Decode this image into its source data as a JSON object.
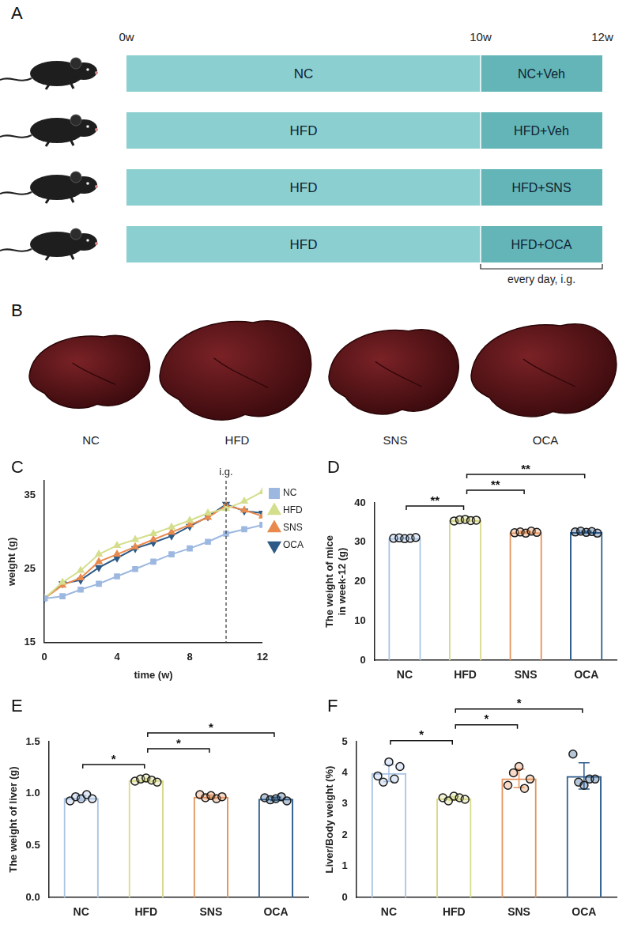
{
  "panel_a": {
    "letter": "A",
    "timeline": [
      "0w",
      "10w",
      "12w"
    ],
    "groups": [
      {
        "phase1": "NC",
        "phase2": "NC+Veh"
      },
      {
        "phase1": "HFD",
        "phase2": "HFD+Veh"
      },
      {
        "phase1": "HFD",
        "phase2": "HFD+SNS"
      },
      {
        "phase1": "HFD",
        "phase2": "HFD+OCA"
      }
    ],
    "note": "every day, i.g."
  },
  "panel_b": {
    "letter": "B",
    "labels": [
      "NC",
      "HFD",
      "SNS",
      "OCA"
    ]
  },
  "chart_data": [
    {
      "letter": "C",
      "type": "line",
      "x_label": "time (w)",
      "y_label": "weight (g)",
      "x": [
        0,
        1,
        2,
        3,
        4,
        5,
        6,
        7,
        8,
        9,
        10,
        11,
        12
      ],
      "series": [
        {
          "name": "NC",
          "color": "#9db8e0",
          "marker": "square",
          "values": [
            21,
            21.3,
            22.2,
            23,
            24,
            25,
            26,
            27,
            27.8,
            28.7,
            29.8,
            30.4,
            31
          ]
        },
        {
          "name": "HFD",
          "color": "#d4de8c",
          "marker": "triangle",
          "values": [
            21,
            23.2,
            24.8,
            27,
            28.2,
            29,
            29.8,
            30.7,
            31.6,
            32.6,
            33.2,
            34.2,
            35.5
          ]
        },
        {
          "name": "SNS",
          "color": "#e88a4e",
          "marker": "triangle",
          "values": [
            21,
            22.8,
            23.8,
            26,
            27,
            28,
            29,
            30,
            31,
            32,
            33.6,
            33,
            32.2
          ]
        },
        {
          "name": "OCA",
          "color": "#2d5a86",
          "marker": "triangle-down",
          "values": [
            21,
            23,
            23.5,
            25.2,
            26.5,
            27.8,
            28.6,
            29.5,
            30.8,
            32.1,
            33.8,
            32.9,
            32.6
          ]
        }
      ],
      "xlim": [
        0,
        12
      ],
      "xticks": [
        0,
        4,
        8,
        12
      ],
      "ylim": [
        15,
        37
      ],
      "yticks": [
        15,
        25,
        35
      ],
      "annotations": [
        {
          "x": 10,
          "text": "i.g."
        }
      ],
      "legend": "right",
      "grid": false
    },
    {
      "letter": "D",
      "type": "bar",
      "y_label": "The weight of mice in week-12 (g)",
      "categories": [
        "NC",
        "HFD",
        "SNS",
        "OCA"
      ],
      "values": [
        31.04,
        35.6,
        32.52,
        32.58
      ],
      "errors": [
        0.12,
        0.16,
        0.19,
        0.19
      ],
      "points": [
        [
          31.0,
          31.1,
          30.9,
          31.0,
          31.2
        ],
        [
          35.4,
          35.7,
          35.8,
          35.5,
          35.6
        ],
        [
          32.4,
          32.6,
          32.3,
          32.8,
          32.5
        ],
        [
          32.6,
          32.8,
          32.5,
          32.7,
          32.3
        ]
      ],
      "colors": [
        "#a9c4e4",
        "#d8d98a",
        "#e5935b",
        "#2e5d8c"
      ],
      "ylim": [
        0,
        40
      ],
      "yticks": [
        0,
        10,
        20,
        30,
        40
      ],
      "significance": [
        {
          "from": "NC",
          "to": "HFD",
          "label": "**"
        },
        {
          "from": "HFD",
          "to": "SNS",
          "label": "**"
        },
        {
          "from": "HFD",
          "to": "OCA",
          "label": "**"
        }
      ],
      "grid": false
    },
    {
      "letter": "E",
      "type": "bar",
      "y_label": "The weight of liver (g)",
      "categories": [
        "NC",
        "HFD",
        "SNS",
        "OCA"
      ],
      "values": [
        0.958,
        1.13,
        0.97,
        0.95
      ],
      "errors": [
        0.022,
        0.016,
        0.016,
        0.016
      ],
      "points": [
        [
          0.93,
          0.97,
          0.95,
          0.99,
          0.95
        ],
        [
          1.12,
          1.14,
          1.15,
          1.13,
          1.11
        ],
        [
          0.99,
          0.96,
          0.98,
          0.95,
          0.97
        ],
        [
          0.96,
          0.94,
          0.95,
          0.97,
          0.93
        ]
      ],
      "colors": [
        "#a9c4e4",
        "#d8d98a",
        "#e5935b",
        "#2e5d8c"
      ],
      "ylim": [
        0,
        1.5
      ],
      "yticks": [
        {
          "value": 0,
          "label": "0.0"
        },
        0.5,
        {
          "value": 1,
          "label": "1.0"
        },
        1.5
      ],
      "significance": [
        {
          "from": "NC",
          "to": "HFD",
          "label": "*"
        },
        {
          "from": "HFD",
          "to": "SNS",
          "label": "*"
        },
        {
          "from": "HFD",
          "to": "OCA",
          "label": "*"
        }
      ],
      "grid": false
    },
    {
      "letter": "F",
      "type": "bar",
      "y_label": "Liver/Body weight (%)",
      "categories": [
        "NC",
        "HFD",
        "SNS",
        "OCA"
      ],
      "values": [
        3.99,
        3.18,
        3.82,
        3.9
      ],
      "errors": [
        0.27,
        0.06,
        0.3,
        0.42
      ],
      "points": [
        [
          3.9,
          3.7,
          4.35,
          3.8,
          4.2
        ],
        [
          3.2,
          3.1,
          3.25,
          3.2,
          3.15
        ],
        [
          3.6,
          4.0,
          4.2,
          3.5,
          3.8
        ],
        [
          4.6,
          3.7,
          3.6,
          3.8,
          3.8
        ]
      ],
      "colors": [
        "#a9c4e4",
        "#d8d98a",
        "#e5935b",
        "#2e5d8c"
      ],
      "ylim": [
        0,
        5
      ],
      "yticks": [
        0,
        1,
        2,
        3,
        4,
        5
      ],
      "significance": [
        {
          "from": "NC",
          "to": "HFD",
          "label": "*"
        },
        {
          "from": "HFD",
          "to": "SNS",
          "label": "*"
        },
        {
          "from": "HFD",
          "to": "OCA",
          "label": "*"
        }
      ],
      "grid": false
    }
  ]
}
